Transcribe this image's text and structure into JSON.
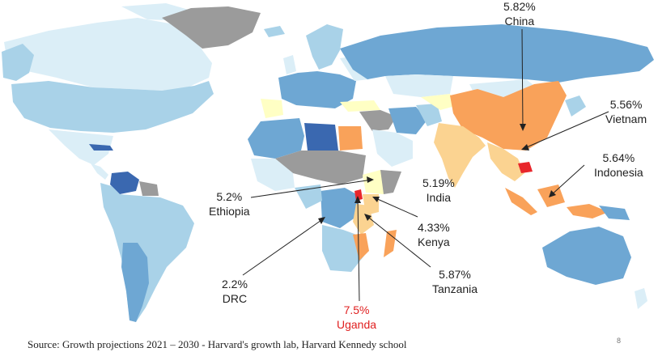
{
  "colors": {
    "ocean": "#ffffff",
    "no_data": "#9b9b9b",
    "very_light_blue": "#dbeef7",
    "light_blue": "#a9d2e8",
    "mid_blue": "#6ea7d3",
    "dark_blue": "#3a68b0",
    "pale_yellow": "#ffffc4",
    "light_orange": "#fbd391",
    "orange": "#f9a25a",
    "red": "#e8262c",
    "pointer": "#222222",
    "highlight_text": "#e02020"
  },
  "callouts": [
    {
      "id": "china",
      "value": "5.82%",
      "country": "China",
      "highlight": false
    },
    {
      "id": "vietnam",
      "value": "5.56%",
      "country": "Vietnam",
      "highlight": false
    },
    {
      "id": "indonesia",
      "value": "5.64%",
      "country": "Indonesia",
      "highlight": false
    },
    {
      "id": "india",
      "value": "5.19%",
      "country": "India",
      "highlight": false
    },
    {
      "id": "ethiopia",
      "value": "5.2%",
      "country": "Ethiopia",
      "highlight": false
    },
    {
      "id": "kenya",
      "value": "4.33%",
      "country": "Kenya",
      "highlight": false
    },
    {
      "id": "tanzania",
      "value": "5.87%",
      "country": "Tanzania",
      "highlight": false
    },
    {
      "id": "drc",
      "value": "2.2%",
      "country": "DRC",
      "highlight": false
    },
    {
      "id": "uganda",
      "value": "7.5%",
      "country": "Uganda",
      "highlight": true
    }
  ],
  "source": "Source: Growth projections 2021 – 2030  - Harvard's growth lab, Harvard Kennedy school",
  "page_number": "8"
}
